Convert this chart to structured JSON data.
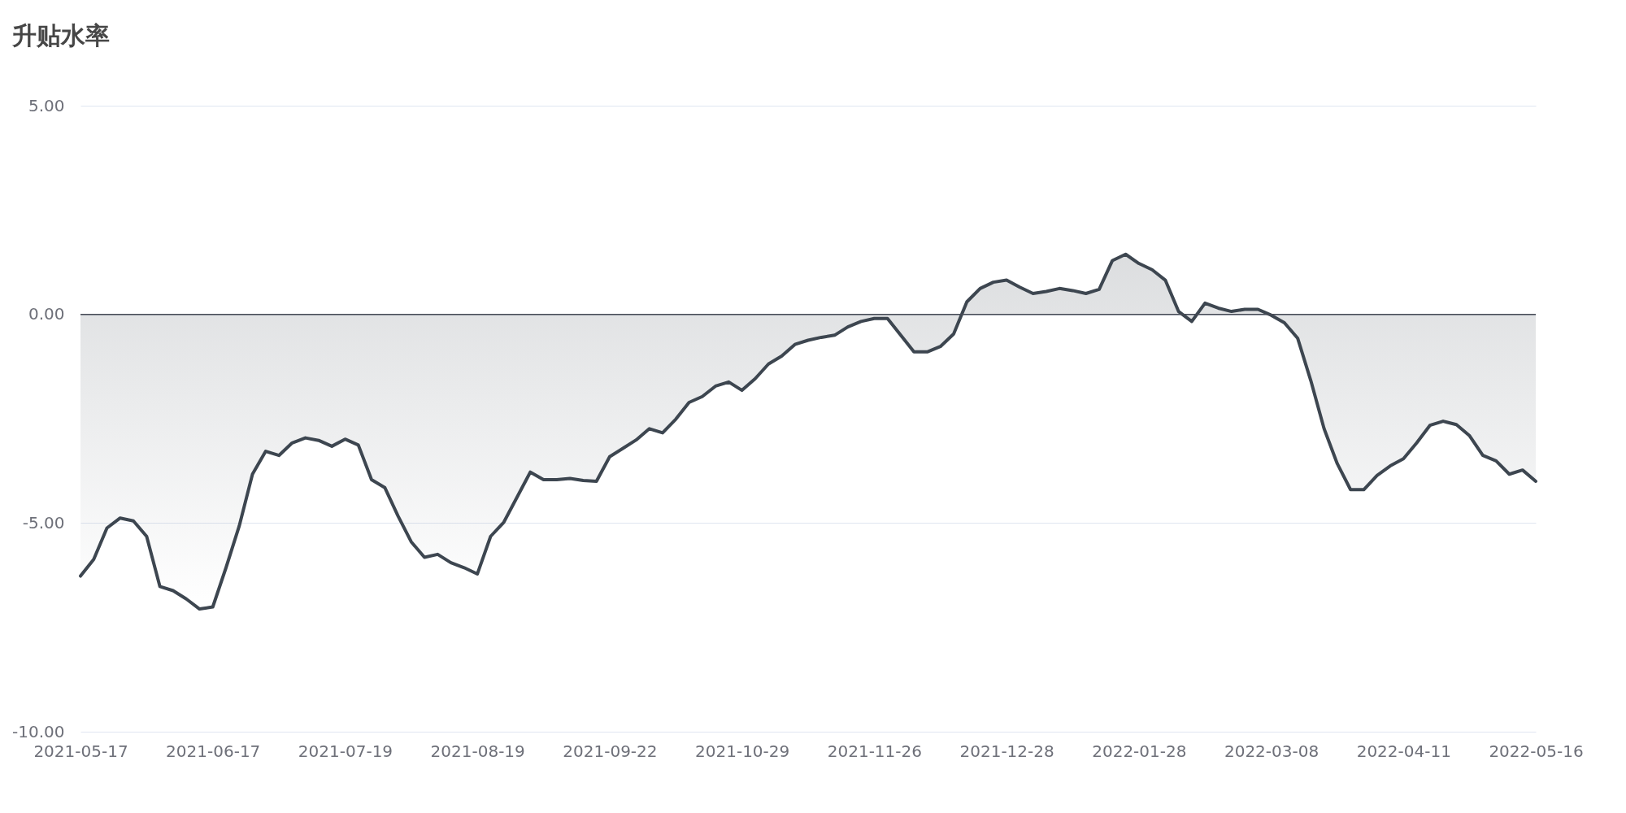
{
  "chart_data": {
    "type": "area",
    "title": "升贴水率",
    "categories": [
      "2021-05-17",
      null,
      null,
      null,
      null,
      null,
      null,
      null,
      null,
      null,
      "2021-06-17",
      null,
      null,
      null,
      null,
      null,
      null,
      null,
      null,
      null,
      "2021-07-19",
      null,
      null,
      null,
      null,
      null,
      null,
      null,
      null,
      null,
      "2021-08-19",
      null,
      null,
      null,
      null,
      null,
      null,
      null,
      null,
      null,
      "2021-09-22",
      null,
      null,
      null,
      null,
      null,
      null,
      null,
      null,
      null,
      "2021-10-29",
      null,
      null,
      null,
      null,
      null,
      null,
      null,
      null,
      null,
      "2021-11-26",
      null,
      null,
      null,
      null,
      null,
      null,
      null,
      null,
      null,
      "2021-12-28",
      null,
      null,
      null,
      null,
      null,
      null,
      null,
      null,
      null,
      "2022-01-28",
      null,
      null,
      null,
      null,
      null,
      null,
      null,
      null,
      null,
      "2022-03-08",
      null,
      null,
      null,
      null,
      null,
      null,
      null,
      null,
      null,
      "2022-04-11",
      null,
      null,
      null,
      null,
      null,
      null,
      null,
      null,
      null,
      "2022-05-16"
    ],
    "series": [
      {
        "color": "#3d4650",
        "values": [
          -6.27,
          -5.87,
          -5.12,
          -4.88,
          -4.95,
          -5.32,
          -6.52,
          -6.62,
          -6.82,
          -7.06,
          -7.01,
          -6.07,
          -5.07,
          -3.83,
          -3.28,
          -3.38,
          -3.08,
          -2.96,
          -3.02,
          -3.16,
          -2.99,
          -3.13,
          -3.96,
          -4.15,
          -4.83,
          -5.45,
          -5.82,
          -5.75,
          -5.95,
          -6.07,
          -6.22,
          -5.32,
          -4.98,
          -4.38,
          -3.78,
          -3.96,
          -3.96,
          -3.93,
          -3.98,
          -4.0,
          -3.41,
          -3.21,
          -3.01,
          -2.74,
          -2.84,
          -2.51,
          -2.11,
          -1.97,
          -1.72,
          -1.62,
          -1.82,
          -1.54,
          -1.19,
          -1.0,
          -0.72,
          -0.62,
          -0.55,
          -0.5,
          -0.3,
          -0.17,
          -0.1,
          -0.1,
          -0.5,
          -0.9,
          -0.9,
          -0.77,
          -0.47,
          0.3,
          0.62,
          0.77,
          0.82,
          0.65,
          0.5,
          0.55,
          0.62,
          0.57,
          0.5,
          0.6,
          1.29,
          1.44,
          1.22,
          1.07,
          0.82,
          0.07,
          -0.17,
          0.27,
          0.15,
          0.07,
          0.12,
          0.12,
          -0.02,
          -0.2,
          -0.57,
          -1.59,
          -2.74,
          -3.58,
          -4.2,
          -4.2,
          -3.86,
          -3.63,
          -3.46,
          -3.08,
          -2.66,
          -2.56,
          -2.64,
          -2.91,
          -3.38,
          -3.51,
          -3.83,
          -3.73,
          -4.0
        ]
      }
    ],
    "ylim": [
      -10,
      5
    ],
    "yticks": [
      {
        "value": -10,
        "label": "-10.00"
      },
      {
        "value": -5,
        "label": "-5.00"
      },
      {
        "value": 0,
        "label": "0.00"
      },
      {
        "value": 5,
        "label": "5.00"
      }
    ],
    "grid": "y",
    "ref_lines": [
      {
        "axis": "y",
        "value": 0,
        "color": "#464b55"
      }
    ]
  }
}
